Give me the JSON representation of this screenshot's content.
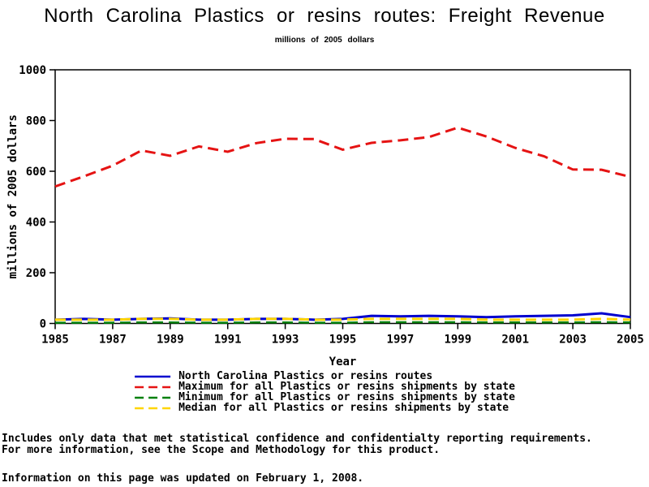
{
  "page": {
    "title": "North Carolina Plastics or resins routes: Freight Revenue",
    "subtitle": "millions of 2005 dollars"
  },
  "chart_data": {
    "type": "line",
    "title": "North Carolina Plastics or resins routes: Freight Revenue",
    "subtitle": "millions of 2005 dollars",
    "xlabel": "Year",
    "ylabel": "millions of 2005 dollars",
    "xlim": [
      1985,
      2005
    ],
    "ylim": [
      0,
      1000
    ],
    "xticks": [
      1985,
      1987,
      1989,
      1991,
      1993,
      1995,
      1997,
      1999,
      2001,
      2003,
      2005
    ],
    "yticks": [
      0,
      200,
      400,
      600,
      800,
      1000
    ],
    "grid": false,
    "frame": true,
    "axis_color": "#000000",
    "legend_position": "bottom",
    "x": [
      1985,
      1986,
      1987,
      1988,
      1989,
      1990,
      1991,
      1992,
      1993,
      1994,
      1995,
      1996,
      1997,
      1998,
      1999,
      2000,
      2001,
      2002,
      2003,
      2004,
      2005
    ],
    "series": [
      {
        "name": "North Carolina Plastics or resins routes",
        "color": "#0000CE",
        "style": "solid",
        "values": [
          15,
          18,
          15,
          18,
          20,
          15,
          15,
          18,
          18,
          15,
          18,
          30,
          28,
          30,
          28,
          25,
          28,
          30,
          32,
          40,
          25
        ]
      },
      {
        "name": "Maximum for all Plastics or resins shipments by state",
        "color": "#E51313",
        "style": "dashed",
        "values": [
          540,
          580,
          622,
          682,
          661,
          698,
          677,
          711,
          728,
          727,
          685,
          712,
          722,
          735,
          772,
          737,
          692,
          659,
          607,
          606,
          578
        ]
      },
      {
        "name": "Minimum for all Plastics or resins shipments by state",
        "color": "#00800D",
        "style": "dashed",
        "values": [
          3,
          3,
          3,
          4,
          4,
          3,
          3,
          4,
          4,
          3,
          3,
          5,
          5,
          5,
          5,
          4,
          4,
          4,
          4,
          5,
          4
        ]
      },
      {
        "name": "Median for all Plastics or resins shipments by state",
        "color": "#FFD500",
        "style": "dashed",
        "values": [
          15,
          15,
          15,
          18,
          18,
          15,
          15,
          18,
          18,
          15,
          15,
          18,
          18,
          18,
          18,
          15,
          15,
          15,
          15,
          18,
          15
        ]
      }
    ]
  },
  "footnotes": [
    "Includes only data that met statistical confidence and confidentialty reporting requirements.",
    "For more information, see the Scope and Methodology for this product."
  ],
  "updated_note": "Information on this page was updated on February 1, 2008."
}
